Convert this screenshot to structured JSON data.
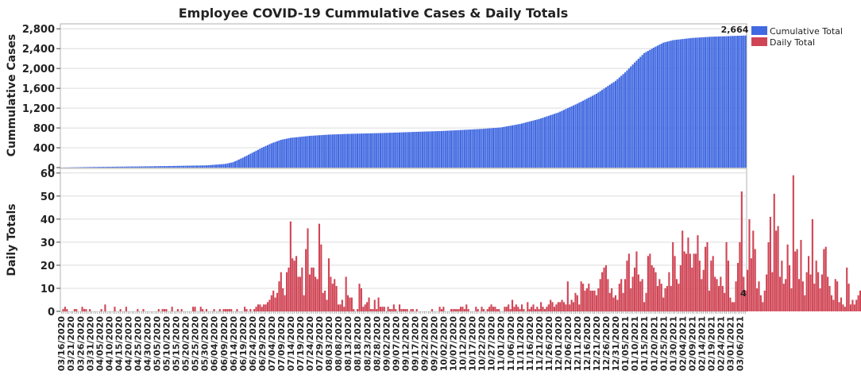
{
  "chart_data": {
    "type": "bar",
    "title": "Employee COVID-19 Cummulative Cases & Daily Totals",
    "legend": [
      {
        "name": "Cumulative Total",
        "color": "#4169E1"
      },
      {
        "name": "Daily Total",
        "color": "#D04555"
      }
    ],
    "legend_placement": "top-right",
    "grid": true,
    "x_start": "2020-03-16",
    "x_end": "2021-03-09",
    "x_tick_labels": [
      "03/16/2020",
      "03/21/2020",
      "03/26/2020",
      "03/31/2020",
      "04/05/2020",
      "04/10/2020",
      "04/15/2020",
      "04/20/2020",
      "04/25/2020",
      "04/30/2020",
      "05/05/2020",
      "05/10/2020",
      "05/15/2020",
      "05/20/2020",
      "05/25/2020",
      "05/30/2020",
      "06/04/2020",
      "06/09/2020",
      "06/14/2020",
      "06/19/2020",
      "06/24/2020",
      "06/29/2020",
      "07/04/2020",
      "07/09/2020",
      "07/14/2020",
      "07/19/2020",
      "07/24/2020",
      "07/29/2020",
      "08/03/2020",
      "08/08/2020",
      "08/13/2020",
      "08/18/2020",
      "08/23/2020",
      "08/28/2020",
      "09/02/2020",
      "09/07/2020",
      "09/12/2020",
      "09/17/2020",
      "09/22/2020",
      "09/27/2020",
      "10/02/2020",
      "10/07/2020",
      "10/12/2020",
      "10/17/2020",
      "10/22/2020",
      "10/27/2020",
      "11/01/2020",
      "11/06/2020",
      "11/11/2020",
      "11/16/2020",
      "11/21/2020",
      "11/26/2020",
      "12/01/2020",
      "12/06/2020",
      "12/11/2020",
      "12/16/2020",
      "12/21/2020",
      "12/26/2020",
      "12/31/2020",
      "01/05/2021",
      "01/10/2021",
      "01/15/2021",
      "01/20/2021",
      "01/25/2021",
      "01/30/2021",
      "02/04/2021",
      "02/09/2021",
      "02/14/2021",
      "02/19/2021",
      "02/24/2021",
      "03/01/2021",
      "03/06/2021"
    ],
    "panels": [
      {
        "series": "Cumulative Total",
        "ylabel": "Cummulative Cases",
        "ylim": [
          0,
          2900
        ],
        "yticks": [
          0,
          400,
          800,
          1200,
          1600,
          2000,
          2400,
          2800
        ],
        "ytick_labels": [
          "0",
          "400",
          "800",
          "1,200",
          "1,600",
          "2,000",
          "2,400",
          "2,800"
        ],
        "end_label": "2,664",
        "points": [
          [
            "2020-03-16",
            0
          ],
          [
            "2020-03-31",
            12
          ],
          [
            "2020-04-30",
            25
          ],
          [
            "2020-05-31",
            45
          ],
          [
            "2020-06-10",
            75
          ],
          [
            "2020-06-14",
            110
          ],
          [
            "2020-06-19",
            200
          ],
          [
            "2020-06-24",
            300
          ],
          [
            "2020-06-29",
            400
          ],
          [
            "2020-07-04",
            490
          ],
          [
            "2020-07-09",
            560
          ],
          [
            "2020-07-14",
            600
          ],
          [
            "2020-07-24",
            640
          ],
          [
            "2020-08-03",
            665
          ],
          [
            "2020-08-13",
            680
          ],
          [
            "2020-09-02",
            700
          ],
          [
            "2020-10-02",
            740
          ],
          [
            "2020-10-22",
            780
          ],
          [
            "2020-11-01",
            810
          ],
          [
            "2020-11-11",
            880
          ],
          [
            "2020-11-21",
            980
          ],
          [
            "2020-12-01",
            1110
          ],
          [
            "2020-12-11",
            1290
          ],
          [
            "2020-12-21",
            1490
          ],
          [
            "2020-12-31",
            1750
          ],
          [
            "2021-01-05",
            1920
          ],
          [
            "2021-01-10",
            2120
          ],
          [
            "2021-01-15",
            2310
          ],
          [
            "2021-01-20",
            2420
          ],
          [
            "2021-01-25",
            2520
          ],
          [
            "2021-01-30",
            2570
          ],
          [
            "2021-02-09",
            2615
          ],
          [
            "2021-02-19",
            2640
          ],
          [
            "2021-03-09",
            2664
          ]
        ]
      },
      {
        "series": "Daily Total",
        "ylabel": "Daily Totals",
        "ylim": [
          0,
          62
        ],
        "yticks": [
          0,
          10,
          20,
          30,
          40,
          50,
          60
        ],
        "ytick_labels": [
          "0",
          "10",
          "20",
          "30",
          "40",
          "50",
          "60"
        ],
        "end_label": "4",
        "values": [
          0,
          1,
          2,
          1,
          0,
          0,
          0,
          1,
          1,
          0,
          0,
          2,
          1,
          1,
          0,
          1,
          0,
          0,
          0,
          0,
          0,
          1,
          0,
          3,
          0,
          0,
          0,
          0,
          2,
          0,
          0,
          1,
          0,
          0,
          2,
          0,
          0,
          0,
          0,
          0,
          1,
          0,
          0,
          1,
          0,
          0,
          0,
          0,
          0,
          0,
          0,
          1,
          0,
          1,
          1,
          1,
          0,
          0,
          2,
          0,
          0,
          1,
          0,
          1,
          0,
          0,
          0,
          0,
          0,
          2,
          2,
          0,
          0,
          2,
          1,
          0,
          1,
          0,
          0,
          0,
          1,
          0,
          0,
          1,
          0,
          1,
          1,
          1,
          1,
          1,
          0,
          0,
          1,
          0,
          0,
          0,
          2,
          1,
          0,
          1,
          0,
          1,
          2,
          3,
          3,
          2,
          3,
          3,
          4,
          5,
          7,
          9,
          6,
          8,
          13,
          17,
          10,
          7,
          17,
          19,
          39,
          23,
          22,
          24,
          15,
          15,
          19,
          7,
          27,
          36,
          16,
          19,
          19,
          15,
          14,
          38,
          29,
          8,
          9,
          5,
          23,
          15,
          12,
          14,
          11,
          3,
          3,
          5,
          2,
          15,
          7,
          6,
          6,
          1,
          0,
          1,
          12,
          10,
          2,
          3,
          4,
          6,
          1,
          1,
          5,
          1,
          6,
          2,
          2,
          2,
          0,
          2,
          1,
          1,
          3,
          1,
          0,
          3,
          1,
          1,
          1,
          1,
          0,
          1,
          1,
          0,
          1,
          0,
          0,
          0,
          0,
          0,
          0,
          0,
          1,
          0,
          0,
          0,
          2,
          1,
          2,
          0,
          0,
          0,
          1,
          1,
          1,
          1,
          1,
          2,
          2,
          1,
          3,
          1,
          0,
          0,
          0,
          2,
          1,
          0,
          2,
          1,
          0,
          1,
          2,
          3,
          2,
          2,
          1,
          1,
          0,
          0,
          2,
          2,
          3,
          1,
          5,
          2,
          3,
          2,
          1,
          3,
          1,
          0,
          4,
          1,
          2,
          3,
          1,
          2,
          1,
          4,
          2,
          1,
          2,
          3,
          5,
          4,
          2,
          3,
          4,
          4,
          5,
          4,
          3,
          13,
          3,
          5,
          4,
          8,
          7,
          3,
          13,
          12,
          9,
          10,
          12,
          9,
          9,
          9,
          7,
          10,
          14,
          17,
          19,
          20,
          14,
          8,
          10,
          6,
          7,
          5,
          12,
          14,
          8,
          14,
          22,
          25,
          10,
          15,
          19,
          26,
          16,
          13,
          14,
          4,
          8,
          24,
          25,
          20,
          19,
          17,
          11,
          14,
          12,
          6,
          10,
          11,
          17,
          11,
          30,
          24,
          14,
          12,
          20,
          35,
          26,
          25,
          32,
          25,
          19,
          25,
          25,
          33,
          22,
          14,
          18,
          28,
          30,
          9,
          22,
          24,
          15,
          14,
          11,
          15,
          11,
          8,
          30,
          22,
          6,
          4,
          4,
          13,
          21,
          30,
          52,
          15,
          9,
          18,
          40,
          23,
          35,
          27,
          10,
          13,
          7,
          4,
          9,
          16,
          30,
          41,
          17,
          51,
          35,
          37,
          15,
          22,
          12,
          14,
          29,
          20,
          10,
          59,
          26,
          27,
          14,
          31,
          13,
          7,
          17,
          24,
          16,
          40,
          12,
          22,
          17,
          10,
          16,
          27,
          28,
          15,
          11,
          7,
          5,
          14,
          13,
          4,
          6,
          3,
          2,
          19,
          12,
          3,
          5,
          3,
          5,
          7,
          9,
          8,
          6,
          1,
          9,
          3,
          3,
          0,
          5,
          6,
          3,
          7,
          1,
          1,
          0,
          2,
          2,
          5,
          2,
          6,
          6,
          1,
          1,
          0,
          2,
          1,
          4,
          2,
          2,
          1,
          4,
          2,
          1,
          3,
          2,
          0,
          3,
          2,
          0,
          5,
          2,
          1,
          0,
          1,
          2,
          1,
          2,
          3,
          3,
          2,
          4
        ]
      }
    ]
  }
}
